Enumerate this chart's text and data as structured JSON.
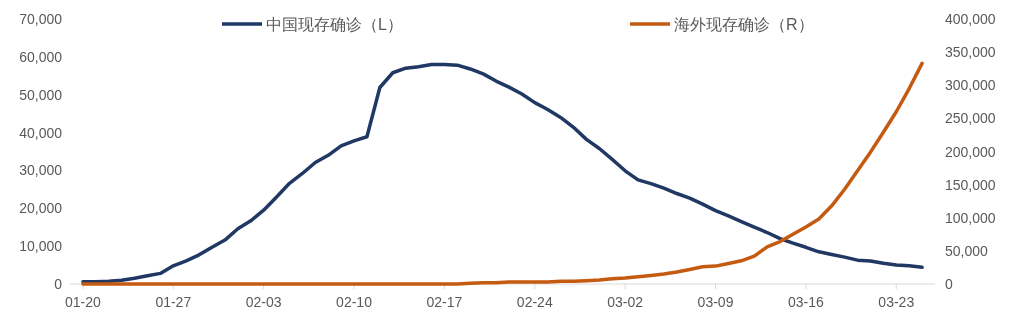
{
  "chart_data": {
    "type": "line",
    "x": [
      "--01-20",
      "--01-21",
      "--01-22",
      "--01-23",
      "--01-24",
      "--01-25",
      "--01-26",
      "--01-27",
      "--01-28",
      "--01-29",
      "--01-30",
      "--01-31",
      "--02-01",
      "--02-02",
      "--02-03",
      "--02-04",
      "--02-05",
      "--02-06",
      "--02-07",
      "--02-08",
      "--02-09",
      "--02-10",
      "--02-11",
      "--02-12",
      "--02-13",
      "--02-14",
      "--02-15",
      "--02-16",
      "--02-17",
      "--02-18",
      "--02-19",
      "--02-20",
      "--02-21",
      "--02-22",
      "--02-23",
      "--02-24",
      "--02-25",
      "--02-26",
      "--02-27",
      "--02-28",
      "--02-29",
      "--03-01",
      "--03-02",
      "--03-03",
      "--03-04",
      "--03-05",
      "--03-06",
      "--03-07",
      "--03-08",
      "--03-09",
      "--03-10",
      "--03-11",
      "--03-12",
      "--03-13",
      "--03-14",
      "--03-15",
      "--03-16",
      "--03-17",
      "--03-18",
      "--03-19",
      "--03-20",
      "--03-21",
      "--03-22",
      "--03-23",
      "--03-24",
      "--03-25"
    ],
    "series": [
      {
        "name": "中国现存确诊（L）",
        "color": "#203864",
        "values": [
          600,
          600,
          700,
          1000,
          1500,
          2200,
          2800,
          4800,
          6100,
          7700,
          9700,
          11600,
          14600,
          16700,
          19500,
          23000,
          26600,
          29200,
          32100,
          34000,
          36500,
          37800,
          38900,
          51900,
          55800,
          57000,
          57400,
          58000,
          58000,
          57800,
          56800,
          55500,
          53600,
          52000,
          50200,
          47900,
          46100,
          44000,
          41400,
          38200,
          35800,
          32900,
          29900,
          27500,
          26500,
          25300,
          23900,
          22700,
          21100,
          19400,
          18000,
          16500,
          15000,
          13600,
          12000,
          10800,
          9700,
          8500,
          7800,
          7100,
          6300,
          6100,
          5500,
          5000,
          4800,
          4400
        ]
      },
      {
        "name": "海外现存确诊（R）",
        "color": "#c55a11",
        "axis": "y2",
        "values": [
          0,
          0,
          0,
          0,
          0,
          0,
          0,
          0,
          0,
          0,
          0,
          0,
          0,
          0,
          0,
          0,
          0,
          0,
          0,
          0,
          0,
          0,
          0,
          0,
          0,
          0,
          0,
          0,
          0,
          0,
          1000,
          2000,
          2000,
          3000,
          3000,
          3000,
          3000,
          4000,
          4000,
          5000,
          6000,
          8000,
          9000,
          11000,
          13000,
          15000,
          18000,
          22000,
          26000,
          27000,
          31000,
          35000,
          42000,
          56000,
          64000,
          75000,
          86000,
          98000,
          118000,
          143000,
          171000,
          199000,
          229000,
          260000,
          295000,
          333000
        ]
      }
    ],
    "xlim": [
      "--01-19",
      "--03-26"
    ],
    "xticks": [
      {
        "value": "--01-20",
        "label": "01-20"
      },
      {
        "value": "--01-27",
        "label": "01-27"
      },
      {
        "value": "--02-03",
        "label": "02-03"
      },
      {
        "value": "--02-10",
        "label": "02-10"
      },
      {
        "value": "--02-17",
        "label": "02-17"
      },
      {
        "value": "--02-24",
        "label": "02-24"
      },
      {
        "value": "--03-02",
        "label": "03-02"
      },
      {
        "value": "--03-09",
        "label": "03-09"
      },
      {
        "value": "--03-16",
        "label": "03-16"
      },
      {
        "value": "--03-23",
        "label": "03-23"
      }
    ],
    "ylim": [
      0,
      70000
    ],
    "yticks": [
      {
        "value": 0,
        "label": "0"
      },
      {
        "value": 10000,
        "label": "10,000"
      },
      {
        "value": 20000,
        "label": "20,000"
      },
      {
        "value": 30000,
        "label": "30,000"
      },
      {
        "value": 40000,
        "label": "40,000"
      },
      {
        "value": 50000,
        "label": "50,000"
      },
      {
        "value": 60000,
        "label": "60,000"
      },
      {
        "value": 70000,
        "label": "70,000"
      }
    ],
    "y2lim": [
      0,
      400000
    ],
    "y2ticks": [
      {
        "value": 0,
        "label": "0"
      },
      {
        "value": 50000,
        "label": "50,000"
      },
      {
        "value": 100000,
        "label": "100,000"
      },
      {
        "value": 150000,
        "label": "150,000"
      },
      {
        "value": 200000,
        "label": "200,000"
      },
      {
        "value": 250000,
        "label": "250,000"
      },
      {
        "value": 300000,
        "label": "300,000"
      },
      {
        "value": 350000,
        "label": "350,000"
      },
      {
        "value": 400000,
        "label": "400,000"
      }
    ],
    "legend": "top",
    "grid": false,
    "marker": "none",
    "line_style": "solid"
  }
}
